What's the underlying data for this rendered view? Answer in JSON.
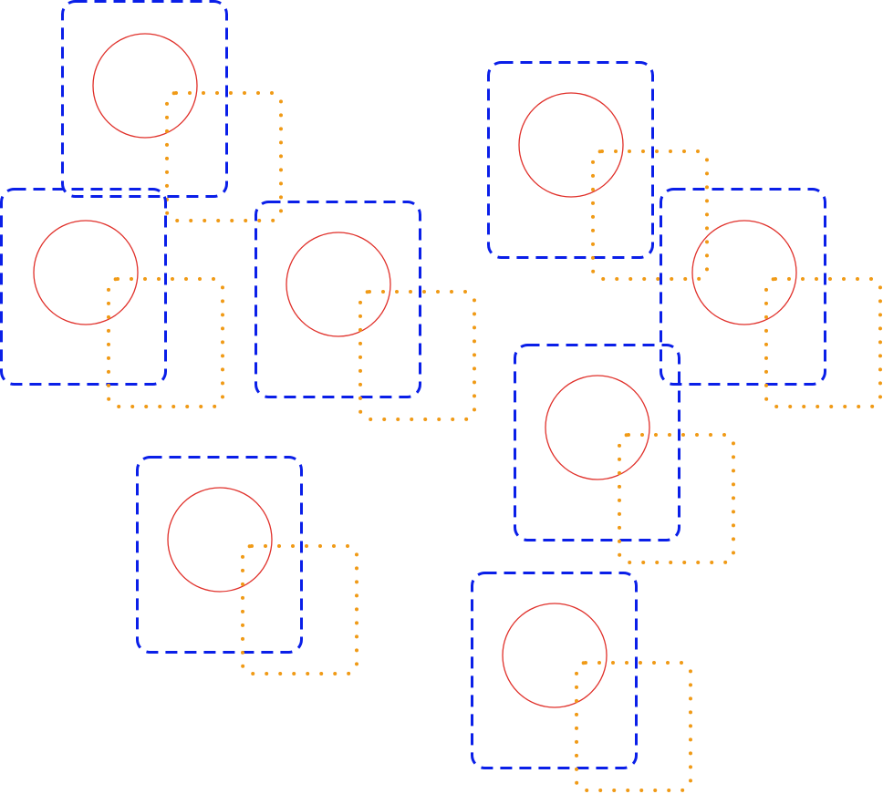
{
  "diagram": {
    "colors": {
      "background": "#ffffff",
      "dashed_square": "#0a1fe8",
      "dotted_square": "#f09a16",
      "circle": "#e0302a"
    },
    "groups": [
      {
        "id": "group-1"
      },
      {
        "id": "group-2"
      },
      {
        "id": "group-3"
      },
      {
        "id": "group-4"
      },
      {
        "id": "group-5"
      },
      {
        "id": "group-6"
      },
      {
        "id": "group-7"
      },
      {
        "id": "group-8"
      }
    ]
  }
}
